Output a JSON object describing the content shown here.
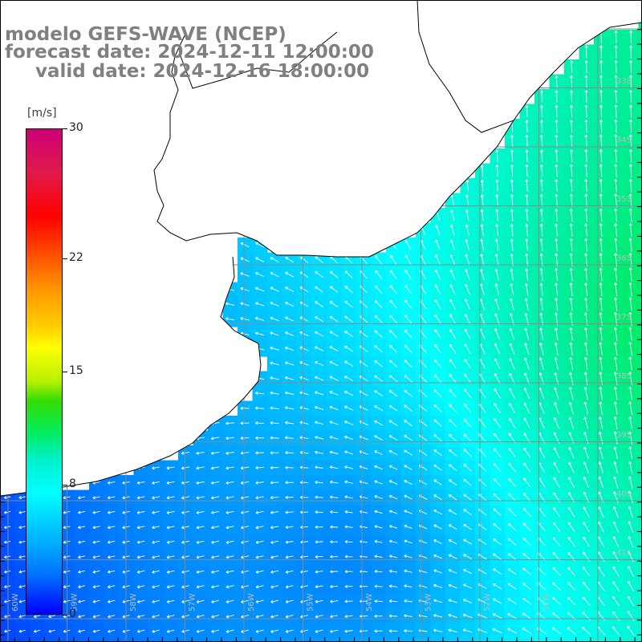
{
  "title": {
    "line1": "modelo GEFS-WAVE (NCEP)",
    "line2": "forecast date: 2024-12-11 12:00:00",
    "line3": "valid date: 2024-12-16 18:00:00"
  },
  "colorbar": {
    "unit": "[m/s]",
    "ticks": [
      "30",
      "22",
      "15",
      "8",
      "0"
    ],
    "tick_values": [
      30,
      22,
      15,
      8,
      0
    ],
    "range": [
      0,
      30
    ]
  },
  "grid": {
    "lat_labels_right": [
      "33S",
      "34S",
      "35S",
      "36S",
      "37S",
      "38S",
      "39S",
      "40S",
      "41S"
    ],
    "lon_labels_bottom": [
      "60W",
      "59W",
      "58W",
      "57W",
      "56W",
      "55W",
      "54W",
      "53W",
      "52W",
      "51W"
    ]
  },
  "colors": {
    "land": "#ffffff",
    "gridline": "#909090",
    "coastline": "#000000",
    "arrow": "#ffffff",
    "title_text": "#808080"
  },
  "field": {
    "variable": "wind speed with direction arrows",
    "scale": "0 = blue, 8 = cyan, 15 = green, 22 = orange, 30 = magenta"
  }
}
